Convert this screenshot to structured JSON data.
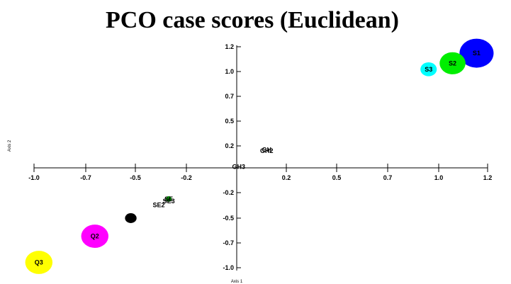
{
  "chart_data": {
    "type": "scatter",
    "title": "PCO case scores (Euclidean)",
    "xlabel": "Axis 1",
    "ylabel": "Axis 2",
    "xlim": [
      -1.1,
      1.3
    ],
    "ylim": [
      -1.1,
      1.3
    ],
    "x_ticks": [
      "-1.0",
      "-0.7",
      "-0.5",
      "-0.2",
      "0.2",
      "0.5",
      "0.7",
      "1.0",
      "1.2"
    ],
    "y_ticks": [
      "1.2",
      "1.0",
      "0.7",
      "0.5",
      "0.2",
      "-0.2",
      "-0.5",
      "-0.7",
      "-1.0"
    ],
    "grid": false,
    "points": [
      {
        "label": "S1",
        "x": 1.2,
        "y": 1.14,
        "size": 0.5,
        "color": "#0000ff"
      },
      {
        "label": "S2",
        "x": 1.08,
        "y": 1.04,
        "size": 0.38,
        "color": "#00ee00"
      },
      {
        "label": "S3",
        "x": 0.96,
        "y": 0.98,
        "size": 0.24,
        "color": "#00ffff"
      },
      {
        "label": "GH",
        "x": 0.15,
        "y": 0.18,
        "size": 0.0,
        "color": "#000000"
      },
      {
        "label": "GH2",
        "x": 0.15,
        "y": 0.17,
        "size": 0.0,
        "color": "#000000"
      },
      {
        "label": "GH3",
        "x": 0.01,
        "y": 0.01,
        "size": 0.0,
        "color": "#000000"
      },
      {
        "label": "SE",
        "x": -0.34,
        "y": -0.31,
        "size": 0.05,
        "color": "#00aa00"
      },
      {
        "label": "SE3",
        "x": -0.34,
        "y": -0.33,
        "size": 0.0,
        "color": "#000000"
      },
      {
        "label": "SE2",
        "x": -0.39,
        "y": -0.37,
        "size": 0.0,
        "color": "#000000"
      },
      {
        "label": "",
        "x": -0.53,
        "y": -0.5,
        "size": 0.17,
        "color": "#000000"
      },
      {
        "label": "Q2",
        "x": -0.71,
        "y": -0.68,
        "size": 0.4,
        "color": "#ff00ff"
      },
      {
        "label": "Q3",
        "x": -0.99,
        "y": -0.94,
        "size": 0.4,
        "color": "#ffff00"
      }
    ]
  }
}
